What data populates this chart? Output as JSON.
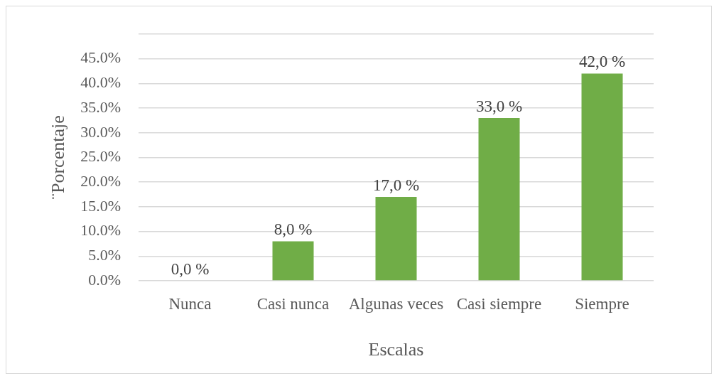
{
  "chart_data": {
    "type": "bar",
    "xlabel": "Escalas",
    "ylabel": "¨Porcentaje",
    "categories": [
      "Nunca",
      "Casi nunca",
      "Algunas veces",
      "Casi siempre",
      "Siempre"
    ],
    "values": [
      0,
      8,
      17,
      33,
      42
    ],
    "value_labels": [
      "0,0 %",
      "8,0 %",
      "17,0 %",
      "33,0 %",
      "42,0 %"
    ],
    "color": "#70ad47",
    "ylim": [
      0,
      50
    ],
    "yticks": [
      {
        "value": 0,
        "label": "0.0%"
      },
      {
        "value": 5,
        "label": "5.0%"
      },
      {
        "value": 10,
        "label": "10.0%"
      },
      {
        "value": 15,
        "label": "15.0%"
      },
      {
        "value": 20,
        "label": "20.0%"
      },
      {
        "value": 25,
        "label": "25.0%"
      },
      {
        "value": 30,
        "label": "30.0%"
      },
      {
        "value": 35,
        "label": "35.0%"
      },
      {
        "value": 40,
        "label": "40.0%"
      },
      {
        "value": 45,
        "label": "45.0%"
      },
      {
        "value": 50,
        "label": null
      }
    ],
    "grid": "y"
  }
}
